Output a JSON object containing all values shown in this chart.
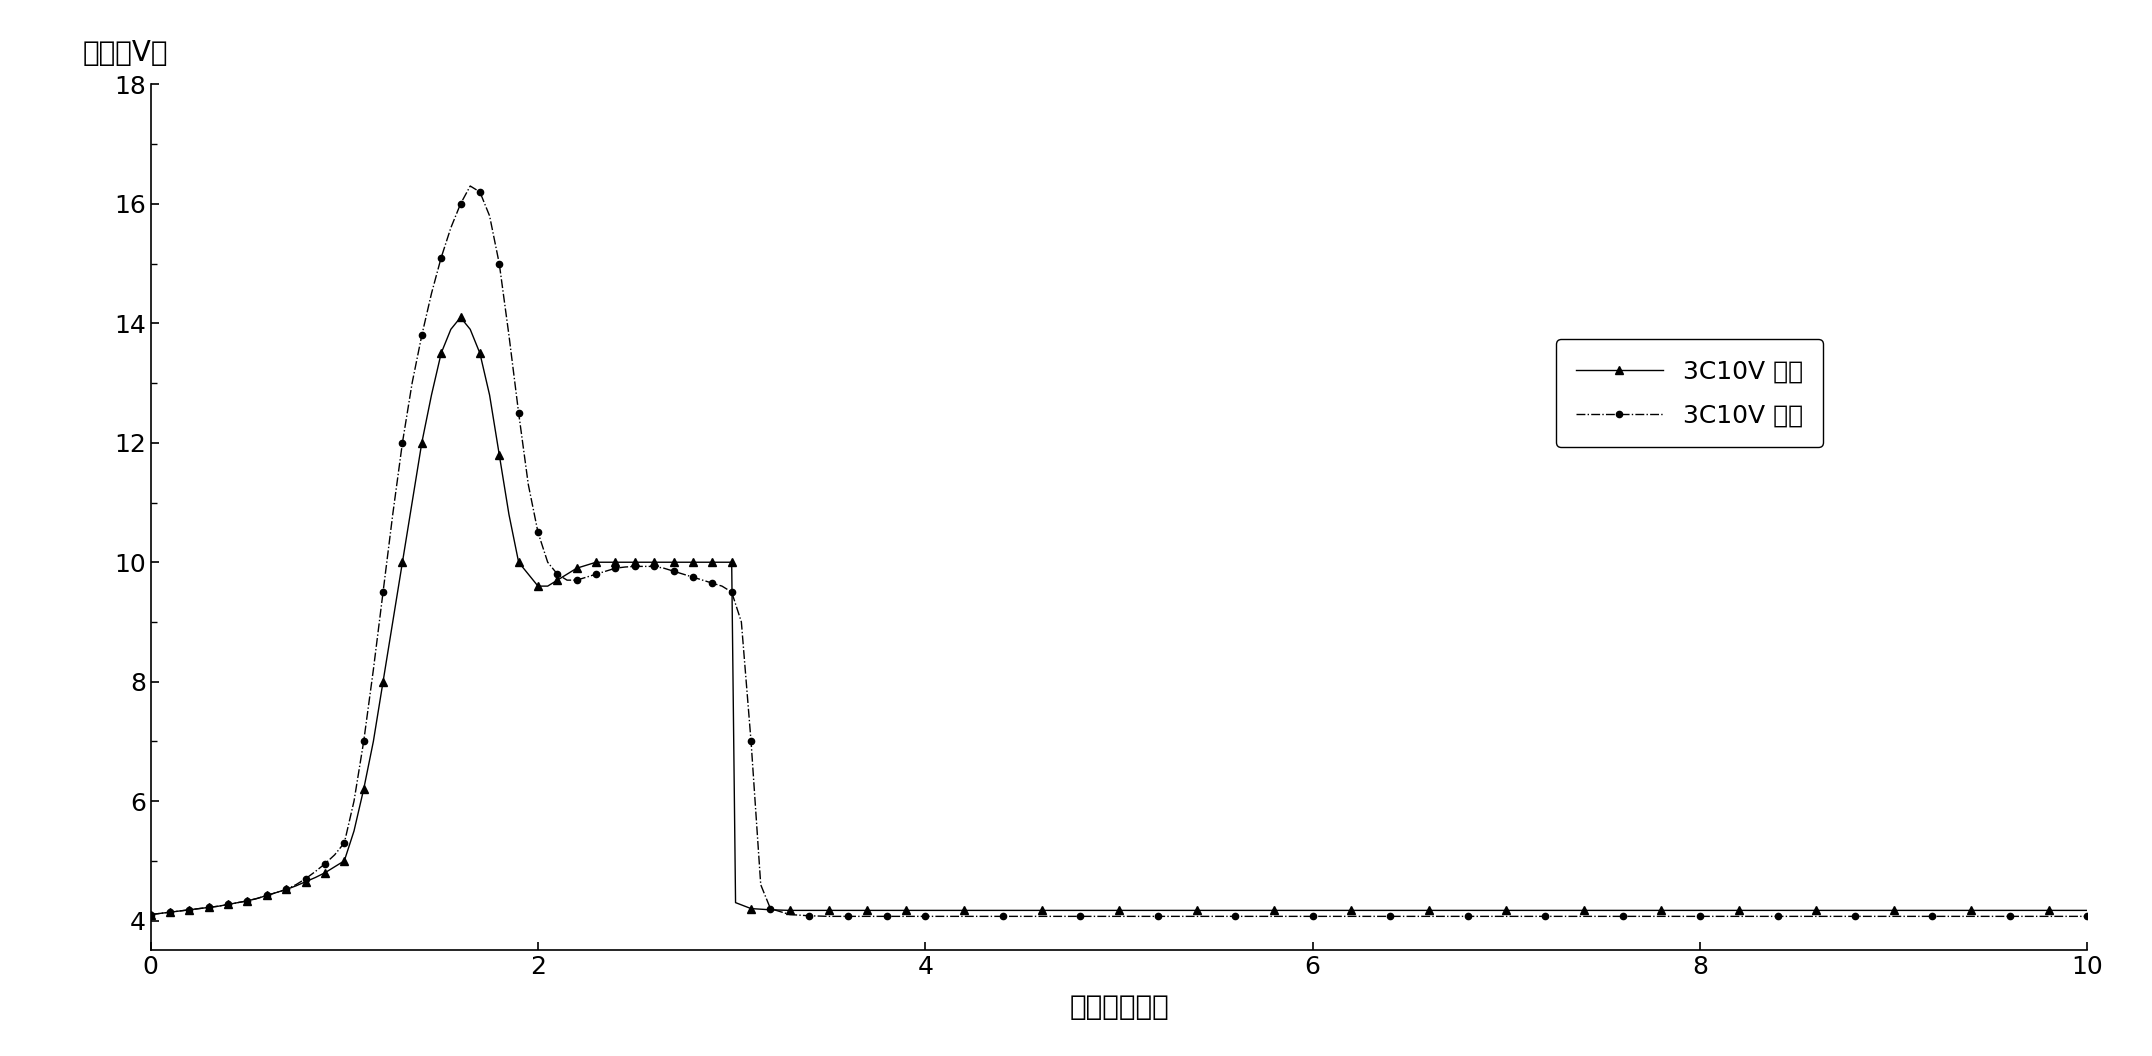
{
  "title": "",
  "xlabel": "时间（分钟）",
  "ylabel": "电压（V）",
  "xlim": [
    0,
    10
  ],
  "ylim": [
    3.5,
    18
  ],
  "yticks": [
    4,
    6,
    8,
    10,
    12,
    14,
    16,
    18
  ],
  "xticks": [
    0,
    2,
    4,
    6,
    8,
    10
  ],
  "legend1_label": "3C10V 过充",
  "legend2_label": "3C10V 过充",
  "background_color": "#ffffff",
  "line_color": "#000000",
  "series1_x": [
    0.0,
    0.05,
    0.1,
    0.15,
    0.2,
    0.25,
    0.3,
    0.35,
    0.4,
    0.45,
    0.5,
    0.55,
    0.6,
    0.65,
    0.7,
    0.75,
    0.8,
    0.85,
    0.9,
    0.95,
    1.0,
    1.05,
    1.1,
    1.15,
    1.2,
    1.25,
    1.3,
    1.35,
    1.4,
    1.45,
    1.5,
    1.55,
    1.6,
    1.65,
    1.7,
    1.75,
    1.8,
    1.85,
    1.9,
    1.95,
    2.0,
    2.05,
    2.1,
    2.15,
    2.2,
    2.25,
    2.3,
    2.35,
    2.4,
    2.45,
    2.5,
    2.55,
    2.6,
    2.65,
    2.7,
    2.75,
    2.8,
    2.85,
    2.9,
    2.95,
    3.0,
    3.02,
    3.1,
    3.2,
    3.3,
    3.4,
    3.5,
    3.6,
    3.7,
    3.8,
    3.9,
    4.0,
    4.2,
    4.4,
    4.6,
    4.8,
    5.0,
    5.2,
    5.4,
    5.6,
    5.8,
    6.0,
    6.2,
    6.4,
    6.6,
    6.8,
    7.0,
    7.2,
    7.4,
    7.6,
    7.8,
    8.0,
    8.2,
    8.4,
    8.6,
    8.8,
    9.0,
    9.2,
    9.4,
    9.6,
    9.8,
    10.0
  ],
  "series1_y": [
    4.1,
    4.12,
    4.14,
    4.16,
    4.18,
    4.2,
    4.22,
    4.24,
    4.27,
    4.3,
    4.33,
    4.37,
    4.42,
    4.47,
    4.52,
    4.58,
    4.65,
    4.72,
    4.8,
    4.9,
    5.0,
    5.5,
    6.2,
    7.0,
    8.0,
    9.0,
    10.0,
    11.0,
    12.0,
    12.8,
    13.5,
    13.9,
    14.1,
    13.9,
    13.5,
    12.8,
    11.8,
    10.8,
    10.0,
    9.8,
    9.6,
    9.6,
    9.7,
    9.8,
    9.9,
    9.95,
    10.0,
    10.0,
    10.0,
    10.0,
    10.0,
    10.0,
    10.0,
    10.0,
    10.0,
    10.0,
    10.0,
    10.0,
    10.0,
    10.0,
    10.0,
    4.3,
    4.2,
    4.18,
    4.17,
    4.17,
    4.17,
    4.17,
    4.17,
    4.17,
    4.17,
    4.17,
    4.17,
    4.17,
    4.17,
    4.17,
    4.17,
    4.17,
    4.17,
    4.17,
    4.17,
    4.17,
    4.17,
    4.17,
    4.17,
    4.17,
    4.17,
    4.17,
    4.17,
    4.17,
    4.17,
    4.17,
    4.17,
    4.17,
    4.17,
    4.17,
    4.17,
    4.17,
    4.17,
    4.17,
    4.17,
    4.17
  ],
  "series2_x": [
    0.0,
    0.05,
    0.1,
    0.15,
    0.2,
    0.25,
    0.3,
    0.35,
    0.4,
    0.45,
    0.5,
    0.55,
    0.6,
    0.65,
    0.7,
    0.75,
    0.8,
    0.85,
    0.9,
    0.95,
    1.0,
    1.05,
    1.1,
    1.15,
    1.2,
    1.25,
    1.3,
    1.35,
    1.4,
    1.45,
    1.5,
    1.55,
    1.6,
    1.65,
    1.7,
    1.75,
    1.8,
    1.85,
    1.9,
    1.95,
    2.0,
    2.05,
    2.1,
    2.15,
    2.2,
    2.25,
    2.3,
    2.35,
    2.4,
    2.45,
    2.5,
    2.55,
    2.6,
    2.65,
    2.7,
    2.75,
    2.8,
    2.85,
    2.9,
    2.95,
    3.0,
    3.05,
    3.1,
    3.15,
    3.2,
    3.3,
    3.4,
    3.5,
    3.6,
    3.7,
    3.8,
    3.9,
    4.0,
    4.2,
    4.4,
    4.6,
    4.8,
    5.0,
    5.2,
    5.4,
    5.6,
    5.8,
    6.0,
    6.2,
    6.4,
    6.6,
    6.8,
    7.0,
    7.2,
    7.4,
    7.6,
    7.8,
    8.0,
    8.2,
    8.4,
    8.6,
    8.8,
    9.0,
    9.2,
    9.4,
    9.6,
    9.8,
    10.0
  ],
  "series2_y": [
    4.1,
    4.12,
    4.14,
    4.16,
    4.18,
    4.2,
    4.22,
    4.24,
    4.27,
    4.3,
    4.33,
    4.37,
    4.42,
    4.47,
    4.52,
    4.6,
    4.7,
    4.82,
    4.95,
    5.1,
    5.3,
    6.0,
    7.0,
    8.2,
    9.5,
    10.8,
    12.0,
    13.0,
    13.8,
    14.5,
    15.1,
    15.6,
    16.0,
    16.3,
    16.2,
    15.8,
    15.0,
    13.8,
    12.5,
    11.3,
    10.5,
    10.0,
    9.8,
    9.7,
    9.7,
    9.75,
    9.8,
    9.85,
    9.9,
    9.92,
    9.93,
    9.93,
    9.93,
    9.9,
    9.85,
    9.8,
    9.75,
    9.7,
    9.65,
    9.6,
    9.5,
    9.0,
    7.0,
    4.6,
    4.2,
    4.1,
    4.08,
    4.07,
    4.07,
    4.07,
    4.07,
    4.07,
    4.07,
    4.07,
    4.07,
    4.07,
    4.07,
    4.07,
    4.07,
    4.07,
    4.07,
    4.07,
    4.07,
    4.07,
    4.07,
    4.07,
    4.07,
    4.07,
    4.07,
    4.07,
    4.07,
    4.07,
    4.07,
    4.07,
    4.07,
    4.07,
    4.07,
    4.07,
    4.07,
    4.07,
    4.07,
    4.07,
    4.07
  ]
}
